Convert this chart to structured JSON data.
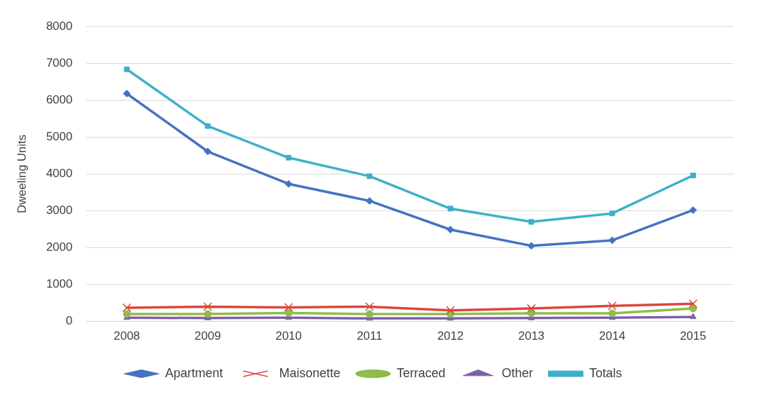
{
  "chart_data": {
    "type": "line",
    "ylabel": "Dweeling Units",
    "categories": [
      "2008",
      "2009",
      "2010",
      "2011",
      "2012",
      "2013",
      "2014",
      "2015"
    ],
    "ylim": [
      0,
      8000
    ],
    "yticks": [
      0,
      1000,
      2000,
      3000,
      4000,
      5000,
      6000,
      7000,
      8000
    ],
    "grid": "y",
    "legend": "bottom",
    "line_style": "solid",
    "series": [
      {
        "name": "Apartment",
        "color": "#4472c4",
        "marker": "diamond",
        "values": [
          6180,
          4610,
          3730,
          3270,
          2490,
          2050,
          2200,
          3020
        ]
      },
      {
        "name": "Maisonette",
        "color": "#d9483b",
        "marker": "cross",
        "values": [
          370,
          400,
          380,
          400,
          300,
          350,
          420,
          480
        ]
      },
      {
        "name": "Terraced",
        "color": "#8fbc4a",
        "marker": "circle",
        "values": [
          200,
          200,
          230,
          200,
          200,
          220,
          220,
          350
        ]
      },
      {
        "name": "Other",
        "color": "#7f5fa8",
        "marker": "triangle",
        "values": [
          100,
          90,
          100,
          80,
          80,
          90,
          100,
          120
        ]
      },
      {
        "name": "Totals",
        "color": "#3fb0c9",
        "marker": "square",
        "values": [
          6840,
          5300,
          4440,
          3940,
          3060,
          2700,
          2930,
          3960
        ]
      }
    ]
  }
}
